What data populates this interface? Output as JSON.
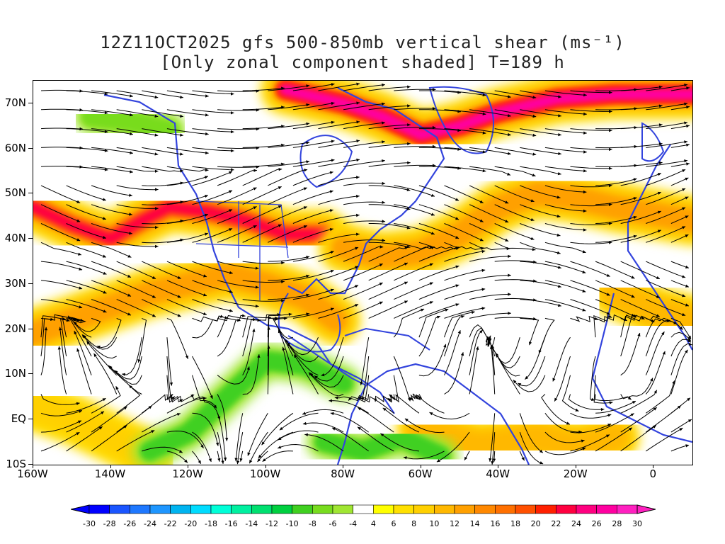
{
  "title": {
    "line1": "12Z11OCT2025 gfs 500-850mb vertical shear (ms⁻¹)",
    "line2": "[Only zonal component shaded] T=189 h"
  },
  "map": {
    "lat_range": [
      -10,
      75
    ],
    "lon_range": [
      -160,
      10
    ],
    "lat_labels": [
      {
        "text": "70N",
        "lat": 70
      },
      {
        "text": "60N",
        "lat": 60
      },
      {
        "text": "50N",
        "lat": 50
      },
      {
        "text": "40N",
        "lat": 40
      },
      {
        "text": "30N",
        "lat": 30
      },
      {
        "text": "20N",
        "lat": 20
      },
      {
        "text": "10N",
        "lat": 10
      },
      {
        "text": "EQ",
        "lat": 0
      },
      {
        "text": "10S",
        "lat": -10
      }
    ],
    "lon_labels": [
      {
        "text": "160W",
        "lon": -160
      },
      {
        "text": "140W",
        "lon": -140
      },
      {
        "text": "120W",
        "lon": -120
      },
      {
        "text": "100W",
        "lon": -100
      },
      {
        "text": "80W",
        "lon": -80
      },
      {
        "text": "60W",
        "lon": -60
      },
      {
        "text": "40W",
        "lon": -40
      },
      {
        "text": "20W",
        "lon": -20
      },
      {
        "text": "0",
        "lon": 0
      }
    ],
    "coastline_color": "#3344dd",
    "streamline_color": "#000000",
    "jet_bands": [
      {
        "name": "pacific-jet",
        "strength": 16,
        "points": [
          [
            -160,
            47
          ],
          [
            -150,
            43
          ],
          [
            -140,
            40
          ],
          [
            -132,
            44
          ],
          [
            -125,
            47
          ],
          [
            -115,
            46
          ],
          [
            -105,
            44
          ],
          [
            -95,
            41
          ],
          [
            -85,
            41
          ]
        ]
      },
      {
        "name": "high-lat-jet",
        "strength": 20,
        "points": [
          [
            -95,
            73
          ],
          [
            -80,
            70
          ],
          [
            -70,
            67
          ],
          [
            -60,
            63
          ],
          [
            -50,
            65
          ],
          [
            -40,
            68
          ],
          [
            -25,
            71
          ],
          [
            -10,
            72
          ],
          [
            10,
            72
          ]
        ]
      },
      {
        "name": "atlantic-jet",
        "strength": 12,
        "points": [
          [
            -80,
            38
          ],
          [
            -70,
            36
          ],
          [
            -60,
            37
          ],
          [
            -50,
            41
          ],
          [
            -40,
            47
          ],
          [
            -30,
            50
          ],
          [
            -20,
            49
          ],
          [
            -10,
            47
          ],
          [
            10,
            44
          ]
        ]
      },
      {
        "name": "subtropical-jet",
        "strength": 12,
        "points": [
          [
            -160,
            19
          ],
          [
            -150,
            22
          ],
          [
            -140,
            25
          ],
          [
            -130,
            28
          ],
          [
            -120,
            30
          ],
          [
            -110,
            32
          ],
          [
            -100,
            30
          ],
          [
            -90,
            27
          ],
          [
            -82,
            22
          ]
        ]
      },
      {
        "name": "east-subtropical-jet",
        "strength": 10,
        "points": [
          [
            -10,
            28
          ],
          [
            0,
            24
          ],
          [
            10,
            22
          ]
        ]
      },
      {
        "name": "tropical-south",
        "strength": 8,
        "points": [
          [
            -160,
            3
          ],
          [
            -150,
            0
          ],
          [
            -140,
            -4
          ],
          [
            -130,
            -8
          ]
        ]
      },
      {
        "name": "tropical-atl",
        "strength": 10,
        "points": [
          [
            -60,
            -2
          ],
          [
            -45,
            -6
          ],
          [
            -30,
            -4
          ],
          [
            -20,
            -6
          ],
          [
            -10,
            -4
          ]
        ]
      }
    ],
    "easterly_bands": [
      {
        "name": "east-pacific-easterly",
        "strength": -10,
        "points": [
          [
            -130,
            -7
          ],
          [
            -120,
            -3
          ],
          [
            -110,
            5
          ],
          [
            -100,
            13
          ],
          [
            -90,
            12
          ],
          [
            -80,
            8
          ]
        ]
      },
      {
        "name": "south-american-easterly",
        "strength": -10,
        "points": [
          [
            -85,
            -5
          ],
          [
            -75,
            -7
          ],
          [
            -65,
            -4
          ],
          [
            -55,
            -8
          ]
        ]
      },
      {
        "name": "canada-easterly",
        "strength": -8,
        "points": [
          [
            -145,
            67
          ],
          [
            -135,
            66
          ],
          [
            -125,
            64
          ]
        ]
      }
    ]
  },
  "colorbar": {
    "labels": [
      "-30",
      "-28",
      "-26",
      "-24",
      "-22",
      "-20",
      "-18",
      "-16",
      "-14",
      "-12",
      "-10",
      "-8",
      "-6",
      "-4",
      "4",
      "6",
      "8",
      "10",
      "12",
      "14",
      "16",
      "18",
      "20",
      "22",
      "24",
      "26",
      "28",
      "30"
    ],
    "colors": [
      "#0000ff",
      "#1a55ff",
      "#1e78ff",
      "#1e96ff",
      "#00b4f0",
      "#00dcff",
      "#00ffd8",
      "#00f0a0",
      "#00e070",
      "#00d040",
      "#40d020",
      "#78dc1e",
      "#a0e632",
      "#ffffff",
      "#ffff00",
      "#ffe000",
      "#ffd000",
      "#ffb800",
      "#ffa000",
      "#ff8800",
      "#ff7000",
      "#ff5000",
      "#ff2000",
      "#ff0040",
      "#ff0080",
      "#ff00a0",
      "#ff20c0"
    ]
  }
}
